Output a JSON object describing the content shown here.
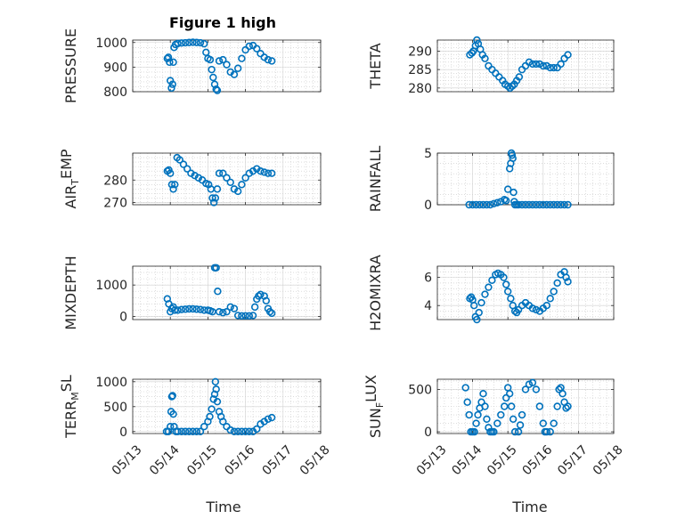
{
  "figure": {
    "title": "Figure 1 high",
    "xlabel": "Time"
  },
  "marker_color": "#0072BD",
  "time_ticks": [
    "05/13",
    "05/14",
    "05/15",
    "05/16",
    "05/17",
    "05/18"
  ],
  "chart_data": [
    {
      "type": "scatter",
      "name": "pressure",
      "title": "Figure 1 high",
      "ylabel": "PRESSURE",
      "xlim": [
        0,
        5
      ],
      "ylim": [
        800,
        1010
      ],
      "yticks": [
        800,
        900,
        1000
      ],
      "show_xlabel": false,
      "x": [
        0.92,
        0.95,
        0.98,
        1.0,
        1.03,
        1.06,
        1.08,
        1.1,
        1.14,
        1.2,
        1.3,
        1.4,
        1.5,
        1.6,
        1.7,
        1.8,
        1.9,
        1.95,
        2.0,
        2.06,
        2.1,
        2.14,
        2.18,
        2.22,
        2.25,
        2.3,
        2.4,
        2.5,
        2.6,
        2.7,
        2.8,
        2.9,
        3.0,
        3.1,
        3.2,
        3.3,
        3.4,
        3.5,
        3.6,
        3.7
      ],
      "y": [
        935,
        940,
        920,
        845,
        815,
        830,
        920,
        980,
        992,
        996,
        998,
        999,
        1000,
        1001,
        1000,
        999,
        995,
        960,
        935,
        930,
        890,
        858,
        830,
        810,
        805,
        925,
        930,
        910,
        880,
        870,
        895,
        935,
        970,
        985,
        988,
        975,
        955,
        940,
        930,
        925
      ]
    },
    {
      "type": "scatter",
      "name": "theta",
      "ylabel": "THETA",
      "xlim": [
        0,
        5
      ],
      "ylim": [
        279,
        293
      ],
      "yticks": [
        280,
        285,
        290
      ],
      "show_xlabel": false,
      "x": [
        0.92,
        0.98,
        1.02,
        1.08,
        1.12,
        1.16,
        1.22,
        1.28,
        1.35,
        1.45,
        1.55,
        1.65,
        1.75,
        1.85,
        1.92,
        2.0,
        2.06,
        2.12,
        2.18,
        2.25,
        2.32,
        2.4,
        2.5,
        2.6,
        2.7,
        2.8,
        2.9,
        3.0,
        3.1,
        3.2,
        3.3,
        3.4,
        3.5,
        3.6,
        3.7
      ],
      "y": [
        289,
        289.5,
        290,
        291.5,
        293,
        292,
        290.5,
        289,
        288,
        286,
        285,
        284,
        283,
        282,
        281,
        280.5,
        280,
        280.5,
        281,
        282,
        283,
        285,
        286,
        287,
        286.5,
        286.5,
        286.5,
        286,
        286,
        285.5,
        285.5,
        285.5,
        286.5,
        288,
        289
      ]
    },
    {
      "type": "scatter",
      "name": "air_temp",
      "ylabel": "AIR_TEMP",
      "xlim": [
        0,
        5
      ],
      "ylim": [
        269,
        292
      ],
      "yticks": [
        270,
        280
      ],
      "show_xlabel": false,
      "x": [
        0.92,
        0.96,
        1.0,
        1.04,
        1.08,
        1.12,
        1.18,
        1.25,
        1.35,
        1.45,
        1.55,
        1.65,
        1.75,
        1.85,
        1.95,
        2.02,
        2.08,
        2.12,
        2.16,
        2.2,
        2.25,
        2.3,
        2.4,
        2.5,
        2.6,
        2.7,
        2.8,
        2.9,
        3.0,
        3.1,
        3.2,
        3.3,
        3.4,
        3.5,
        3.6,
        3.7
      ],
      "y": [
        284,
        284.5,
        283,
        278,
        276,
        278,
        290,
        289,
        287,
        285,
        283,
        282,
        281,
        280,
        278.5,
        278,
        276,
        272,
        270,
        272,
        276,
        283,
        283,
        281,
        279,
        276,
        275,
        278,
        281,
        283,
        284,
        285,
        284,
        283.5,
        283,
        283
      ]
    },
    {
      "type": "scatter",
      "name": "rainfall",
      "ylabel": "RAINFALL",
      "xlim": [
        0,
        5
      ],
      "ylim": [
        0,
        5
      ],
      "yticks": [
        0,
        5
      ],
      "show_xlabel": false,
      "x": [
        0.9,
        1.0,
        1.1,
        1.2,
        1.3,
        1.4,
        1.5,
        1.6,
        1.7,
        1.8,
        1.9,
        1.95,
        2.0,
        2.05,
        2.08,
        2.1,
        2.12,
        2.14,
        2.16,
        2.18,
        2.2,
        2.25,
        2.3,
        2.4,
        2.5,
        2.6,
        2.7,
        2.8,
        2.9,
        3.0,
        3.1,
        3.2,
        3.3,
        3.4,
        3.5,
        3.6,
        3.7
      ],
      "y": [
        0,
        0,
        0,
        0,
        0,
        0,
        0,
        0.1,
        0.2,
        0.3,
        0.5,
        0.4,
        1.5,
        3.5,
        4.0,
        5.0,
        4.8,
        4.5,
        1.2,
        0.3,
        0,
        0,
        0,
        0,
        0,
        0,
        0,
        0,
        0,
        0,
        0,
        0,
        0,
        0,
        0,
        0,
        0
      ]
    },
    {
      "type": "scatter",
      "name": "mixdepth",
      "ylabel": "MIXDEPTH",
      "xlim": [
        0,
        5
      ],
      "ylim": [
        -100,
        1600
      ],
      "yticks": [
        0,
        1000
      ],
      "show_xlabel": false,
      "x": [
        0.92,
        0.96,
        1.0,
        1.04,
        1.08,
        1.12,
        1.2,
        1.3,
        1.4,
        1.5,
        1.6,
        1.7,
        1.8,
        1.9,
        2.0,
        2.06,
        2.12,
        2.18,
        2.22,
        2.26,
        2.3,
        2.4,
        2.5,
        2.6,
        2.7,
        2.8,
        2.9,
        3.0,
        3.1,
        3.2,
        3.25,
        3.3,
        3.35,
        3.4,
        3.5,
        3.55,
        3.6,
        3.65,
        3.7
      ],
      "y": [
        560,
        400,
        150,
        250,
        300,
        200,
        200,
        220,
        230,
        240,
        240,
        230,
        220,
        200,
        200,
        180,
        150,
        1550,
        1550,
        800,
        150,
        120,
        150,
        300,
        250,
        30,
        20,
        20,
        20,
        30,
        300,
        550,
        650,
        700,
        650,
        500,
        250,
        150,
        100
      ]
    },
    {
      "type": "scatter",
      "name": "h2omixra",
      "ylabel": "H2OMIXRA",
      "xlim": [
        0,
        5
      ],
      "ylim": [
        3,
        6.8
      ],
      "yticks": [
        4,
        6
      ],
      "show_xlabel": false,
      "x": [
        0.92,
        0.96,
        1.0,
        1.04,
        1.08,
        1.12,
        1.18,
        1.25,
        1.35,
        1.45,
        1.55,
        1.65,
        1.72,
        1.8,
        1.88,
        1.95,
        2.0,
        2.08,
        2.14,
        2.2,
        2.25,
        2.3,
        2.4,
        2.5,
        2.6,
        2.7,
        2.8,
        2.9,
        3.0,
        3.1,
        3.2,
        3.3,
        3.4,
        3.5,
        3.6,
        3.65,
        3.7
      ],
      "y": [
        4.5,
        4.6,
        4.4,
        4.0,
        3.2,
        3.0,
        3.5,
        4.2,
        4.8,
        5.3,
        5.8,
        6.2,
        6.3,
        6.2,
        6.0,
        5.5,
        5.0,
        4.5,
        4.0,
        3.6,
        3.5,
        3.7,
        4.0,
        4.2,
        4.0,
        3.8,
        3.7,
        3.6,
        3.8,
        4.0,
        4.5,
        5.0,
        5.6,
        6.2,
        6.4,
        6.0,
        5.7
      ]
    },
    {
      "type": "scatter",
      "name": "terr_msl",
      "ylabel": "TERR_MSL",
      "xlim": [
        0,
        5
      ],
      "ylim": [
        -40,
        1050
      ],
      "yticks": [
        0,
        500,
        1000
      ],
      "show_xlabel": true,
      "x": [
        0.9,
        0.95,
        1.0,
        1.02,
        1.04,
        1.06,
        1.08,
        1.1,
        1.15,
        1.2,
        1.3,
        1.4,
        1.5,
        1.6,
        1.7,
        1.8,
        1.9,
        2.0,
        2.05,
        2.1,
        2.15,
        2.18,
        2.2,
        2.22,
        2.25,
        2.3,
        2.35,
        2.4,
        2.5,
        2.6,
        2.7,
        2.8,
        2.9,
        3.0,
        3.1,
        3.2,
        3.3,
        3.4,
        3.5,
        3.6,
        3.7
      ],
      "y": [
        0,
        0,
        100,
        400,
        700,
        720,
        350,
        100,
        0,
        0,
        0,
        0,
        0,
        0,
        0,
        0,
        100,
        200,
        300,
        450,
        650,
        750,
        1000,
        850,
        600,
        400,
        300,
        200,
        100,
        30,
        0,
        0,
        0,
        0,
        0,
        0,
        50,
        150,
        200,
        250,
        280
      ]
    },
    {
      "type": "scatter",
      "name": "sun_flux",
      "ylabel": "SUN_FLUX",
      "xlim": [
        0,
        5
      ],
      "ylim": [
        -20,
        620
      ],
      "yticks": [
        0,
        500
      ],
      "show_xlabel": true,
      "x": [
        0.8,
        0.85,
        0.9,
        0.95,
        1.0,
        1.05,
        1.1,
        1.15,
        1.2,
        1.25,
        1.3,
        1.35,
        1.4,
        1.45,
        1.5,
        1.55,
        1.6,
        1.7,
        1.8,
        1.9,
        1.95,
        2.0,
        2.05,
        2.1,
        2.15,
        2.2,
        2.3,
        2.35,
        2.4,
        2.5,
        2.6,
        2.7,
        2.8,
        2.9,
        3.0,
        3.05,
        3.1,
        3.2,
        3.3,
        3.4,
        3.45,
        3.5,
        3.55,
        3.6,
        3.65,
        3.7
      ],
      "y": [
        520,
        350,
        200,
        0,
        0,
        0,
        100,
        200,
        280,
        350,
        450,
        300,
        150,
        50,
        0,
        0,
        0,
        100,
        200,
        300,
        400,
        520,
        450,
        300,
        150,
        0,
        0,
        80,
        200,
        500,
        560,
        580,
        500,
        300,
        100,
        0,
        0,
        0,
        100,
        300,
        500,
        520,
        450,
        350,
        280,
        300
      ]
    }
  ]
}
